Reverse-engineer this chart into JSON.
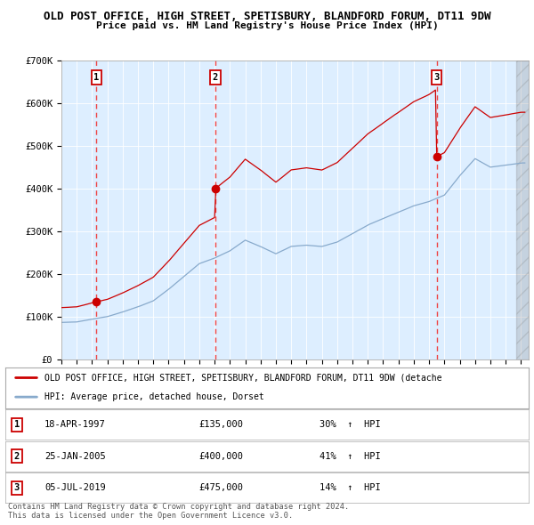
{
  "title": "OLD POST OFFICE, HIGH STREET, SPETISBURY, BLANDFORD FORUM, DT11 9DW",
  "subtitle": "Price paid vs. HM Land Registry's House Price Index (HPI)",
  "background_color": "#ffffff",
  "plot_bg_color": "#ddeeff",
  "ylim": [
    0,
    700000
  ],
  "xlim_start": 1995.0,
  "xlim_end": 2025.5,
  "ytick_vals": [
    0,
    100000,
    200000,
    300000,
    400000,
    500000,
    600000,
    700000
  ],
  "ytick_labels": [
    "£0",
    "£100K",
    "£200K",
    "£300K",
    "£400K",
    "£500K",
    "£600K",
    "£700K"
  ],
  "xtick_vals": [
    1995,
    1996,
    1997,
    1998,
    1999,
    2000,
    2001,
    2002,
    2003,
    2004,
    2005,
    2006,
    2007,
    2008,
    2009,
    2010,
    2011,
    2012,
    2013,
    2014,
    2015,
    2016,
    2017,
    2018,
    2019,
    2020,
    2021,
    2022,
    2023,
    2024,
    2025
  ],
  "sale_points": [
    {
      "num": 1,
      "year": 1997.29,
      "price": 135000,
      "date": "18-APR-1997",
      "pct": "30%",
      "dir": "↑"
    },
    {
      "num": 2,
      "year": 2005.05,
      "price": 400000,
      "date": "25-JAN-2005",
      "pct": "41%",
      "dir": "↑"
    },
    {
      "num": 3,
      "year": 2019.5,
      "price": 475000,
      "date": "05-JUL-2019",
      "pct": "14%",
      "dir": "↑"
    }
  ],
  "red_line_color": "#cc0000",
  "blue_line_color": "#88aacc",
  "sale_dot_color": "#cc0000",
  "vline_color": "#ee4444",
  "legend_line1": "OLD POST OFFICE, HIGH STREET, SPETISBURY, BLANDFORD FORUM, DT11 9DW (detache",
  "legend_line2": "HPI: Average price, detached house, Dorset",
  "footer1": "Contains HM Land Registry data © Crown copyright and database right 2024.",
  "footer2": "This data is licensed under the Open Government Licence v3.0."
}
